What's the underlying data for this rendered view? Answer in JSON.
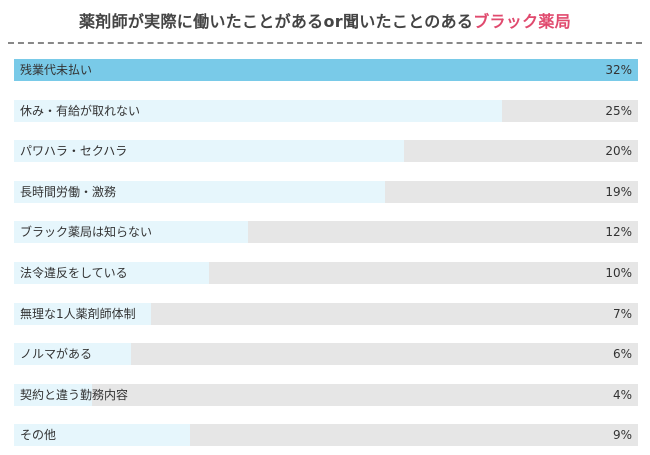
{
  "title": {
    "main": "薬剤師が実際に働いたことがあるor聞いたことのある",
    "highlight": "ブラック薬局"
  },
  "colors": {
    "top_bar": "#79cae8",
    "bar": "#e6f6fc",
    "track": "#e6e6e6",
    "highlight": "#e04a6e"
  },
  "chart_data": {
    "type": "bar",
    "orientation": "horizontal",
    "categories": [
      "残業代未払い",
      "休み・有給が取れない",
      "パワハラ・セクハラ",
      "長時間労働・激務",
      "ブラック薬局は知らない",
      "法令違反をしている",
      "無理な1人薬剤師体制",
      "ノルマがある",
      "契約と違う勤務内容",
      "その他"
    ],
    "values": [
      32,
      25,
      20,
      19,
      12,
      10,
      7,
      6,
      4,
      9
    ],
    "value_labels": [
      "32%",
      "25%",
      "20%",
      "19%",
      "12%",
      "10%",
      "7%",
      "6%",
      "4%",
      "9%"
    ],
    "xlim": [
      0,
      32
    ],
    "unit": "%"
  }
}
